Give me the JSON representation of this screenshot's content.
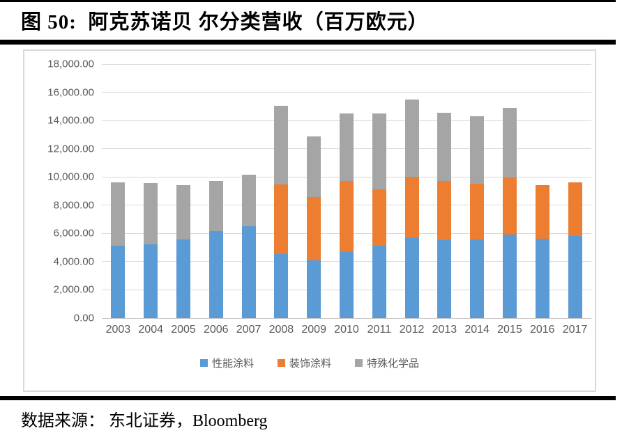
{
  "page": {
    "title": "图 50:  阿克苏诺贝 尔分类营收（百万欧元）",
    "source": "数据来源： 东北证券，Bloomberg"
  },
  "chart_data": {
    "type": "bar",
    "stacked": true,
    "title": "阿克苏诺贝尔分类营收（百万欧元）",
    "categories": [
      "2003",
      "2004",
      "2005",
      "2006",
      "2007",
      "2008",
      "2009",
      "2010",
      "2011",
      "2012",
      "2013",
      "2014",
      "2015",
      "2016",
      "2017"
    ],
    "series": [
      {
        "name": "性能涂料",
        "color": "#5B9BD5",
        "values": [
          5150,
          5250,
          5550,
          6150,
          6500,
          4550,
          4100,
          4700,
          5150,
          5700,
          5500,
          5550,
          5900,
          5600,
          5800
        ]
      },
      {
        "name": "装饰涂料",
        "color": "#ED7D31",
        "values": [
          0,
          0,
          0,
          0,
          0,
          4900,
          4500,
          5000,
          3950,
          4300,
          4200,
          3950,
          4050,
          3800,
          3800
        ]
      },
      {
        "name": "特殊化学品",
        "color": "#A5A5A5",
        "values": [
          4450,
          4300,
          3850,
          3550,
          3650,
          5600,
          4250,
          4800,
          5400,
          5500,
          4850,
          4800,
          4950,
          0,
          0
        ]
      }
    ],
    "ylim": [
      0,
      18000
    ],
    "y_ticks": [
      0,
      2000,
      4000,
      6000,
      8000,
      10000,
      12000,
      14000,
      16000,
      18000
    ],
    "y_tick_labels": [
      "0.00",
      "2,000.00",
      "4,000.00",
      "6,000.00",
      "8,000.00",
      "10,000.00",
      "12,000.00",
      "14,000.00",
      "16,000.00",
      "18,000.00"
    ],
    "grid": "horizontal",
    "legend_position": "bottom"
  }
}
